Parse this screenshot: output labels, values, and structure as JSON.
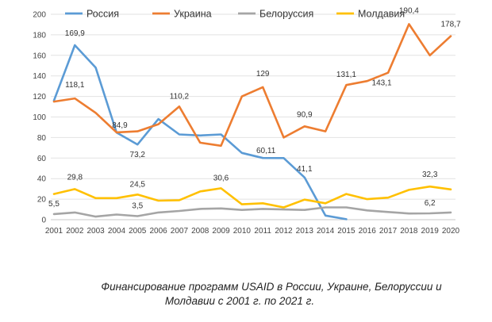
{
  "chart_data": {
    "type": "line",
    "x": [
      "2001",
      "2002",
      "2003",
      "2004",
      "2005",
      "2006",
      "2007",
      "2008",
      "2009",
      "2010",
      "2011",
      "2012",
      "2013",
      "2014",
      "2015",
      "2016",
      "2017",
      "2018",
      "2019",
      "2020"
    ],
    "ylim": [
      0,
      200
    ],
    "yticks": [
      "0",
      "20",
      "40",
      "60",
      "80",
      "100",
      "120",
      "140",
      "160",
      "180",
      "200"
    ],
    "grid": true,
    "legend_position": "top",
    "series": [
      {
        "name": "Россия",
        "color": "#5b9bd5",
        "values": [
          116,
          169.9,
          148,
          84.9,
          73.2,
          98,
          83,
          82,
          83,
          65,
          60.11,
          60,
          41.1,
          4,
          0.5,
          null,
          null,
          null,
          null,
          null
        ]
      },
      {
        "name": "Украина",
        "color": "#ed7d31",
        "values": [
          115,
          118.1,
          104,
          85,
          86,
          93,
          110.2,
          75,
          72,
          120,
          129,
          80,
          90.9,
          86,
          131.1,
          135,
          143.1,
          190.4,
          160,
          178.7
        ]
      },
      {
        "name": "Белоруссия",
        "color": "#a5a5a5",
        "values": [
          5.5,
          7,
          3,
          5,
          3.5,
          7,
          8.5,
          10.5,
          11,
          9.5,
          10.5,
          10,
          9.5,
          12,
          12,
          9,
          7.5,
          6,
          6.2,
          7
        ]
      },
      {
        "name": "Молдавия",
        "color": "#ffc000",
        "values": [
          25,
          29.8,
          21,
          21,
          24.5,
          18.5,
          19,
          27.5,
          30.6,
          15,
          16,
          12,
          19.5,
          16,
          25,
          20,
          21.5,
          29,
          32.3,
          29.5
        ]
      }
    ],
    "labels": [
      {
        "series": 0,
        "index": 1,
        "text": "169,9",
        "dy": -12,
        "dx": 0
      },
      {
        "series": 0,
        "index": 4,
        "text": "73,2",
        "dy": 16,
        "dx": 0
      },
      {
        "series": 0,
        "index": 10,
        "text": "60,11",
        "dy": -6,
        "dx": 4
      },
      {
        "series": 0,
        "index": 12,
        "text": "41,1",
        "dy": -8,
        "dx": 0
      },
      {
        "series": 1,
        "index": 1,
        "text": "118,1",
        "dy": -14,
        "dx": 0
      },
      {
        "series": 1,
        "index": 3,
        "text": "84,9",
        "dy": -6,
        "dx": 4
      },
      {
        "series": 1,
        "index": 6,
        "text": "110,2",
        "dy": -10,
        "dx": 0
      },
      {
        "series": 1,
        "index": 10,
        "text": "129",
        "dy": -14,
        "dx": 0
      },
      {
        "series": 1,
        "index": 12,
        "text": "90,9",
        "dy": -12,
        "dx": 0
      },
      {
        "series": 1,
        "index": 14,
        "text": "131,1",
        "dy": -10,
        "dx": 0
      },
      {
        "series": 1,
        "index": 16,
        "text": "143,1",
        "dy": 16,
        "dx": -8
      },
      {
        "series": 1,
        "index": 17,
        "text": "190,4",
        "dy": -14,
        "dx": 0
      },
      {
        "series": 1,
        "index": 19,
        "text": "178,7",
        "dy": -12,
        "dx": 0
      },
      {
        "series": 2,
        "index": 0,
        "text": "5,5",
        "dy": -10,
        "dx": 0
      },
      {
        "series": 2,
        "index": 4,
        "text": "3,5",
        "dy": -10,
        "dx": 0
      },
      {
        "series": 2,
        "index": 18,
        "text": "6,2",
        "dy": -10,
        "dx": 0
      },
      {
        "series": 3,
        "index": 1,
        "text": "29,8",
        "dy": -12,
        "dx": 0
      },
      {
        "series": 3,
        "index": 4,
        "text": "24,5",
        "dy": -10,
        "dx": 0
      },
      {
        "series": 3,
        "index": 8,
        "text": "30,6",
        "dy": -10,
        "dx": 0
      },
      {
        "series": 3,
        "index": 18,
        "text": "32,3",
        "dy": -12,
        "dx": 0
      }
    ]
  },
  "caption": {
    "line1": "Финансирование программ USAID в России, Украине, Белоруссии и",
    "line2": "Молдавии с 2001 г. по 2021 г."
  }
}
